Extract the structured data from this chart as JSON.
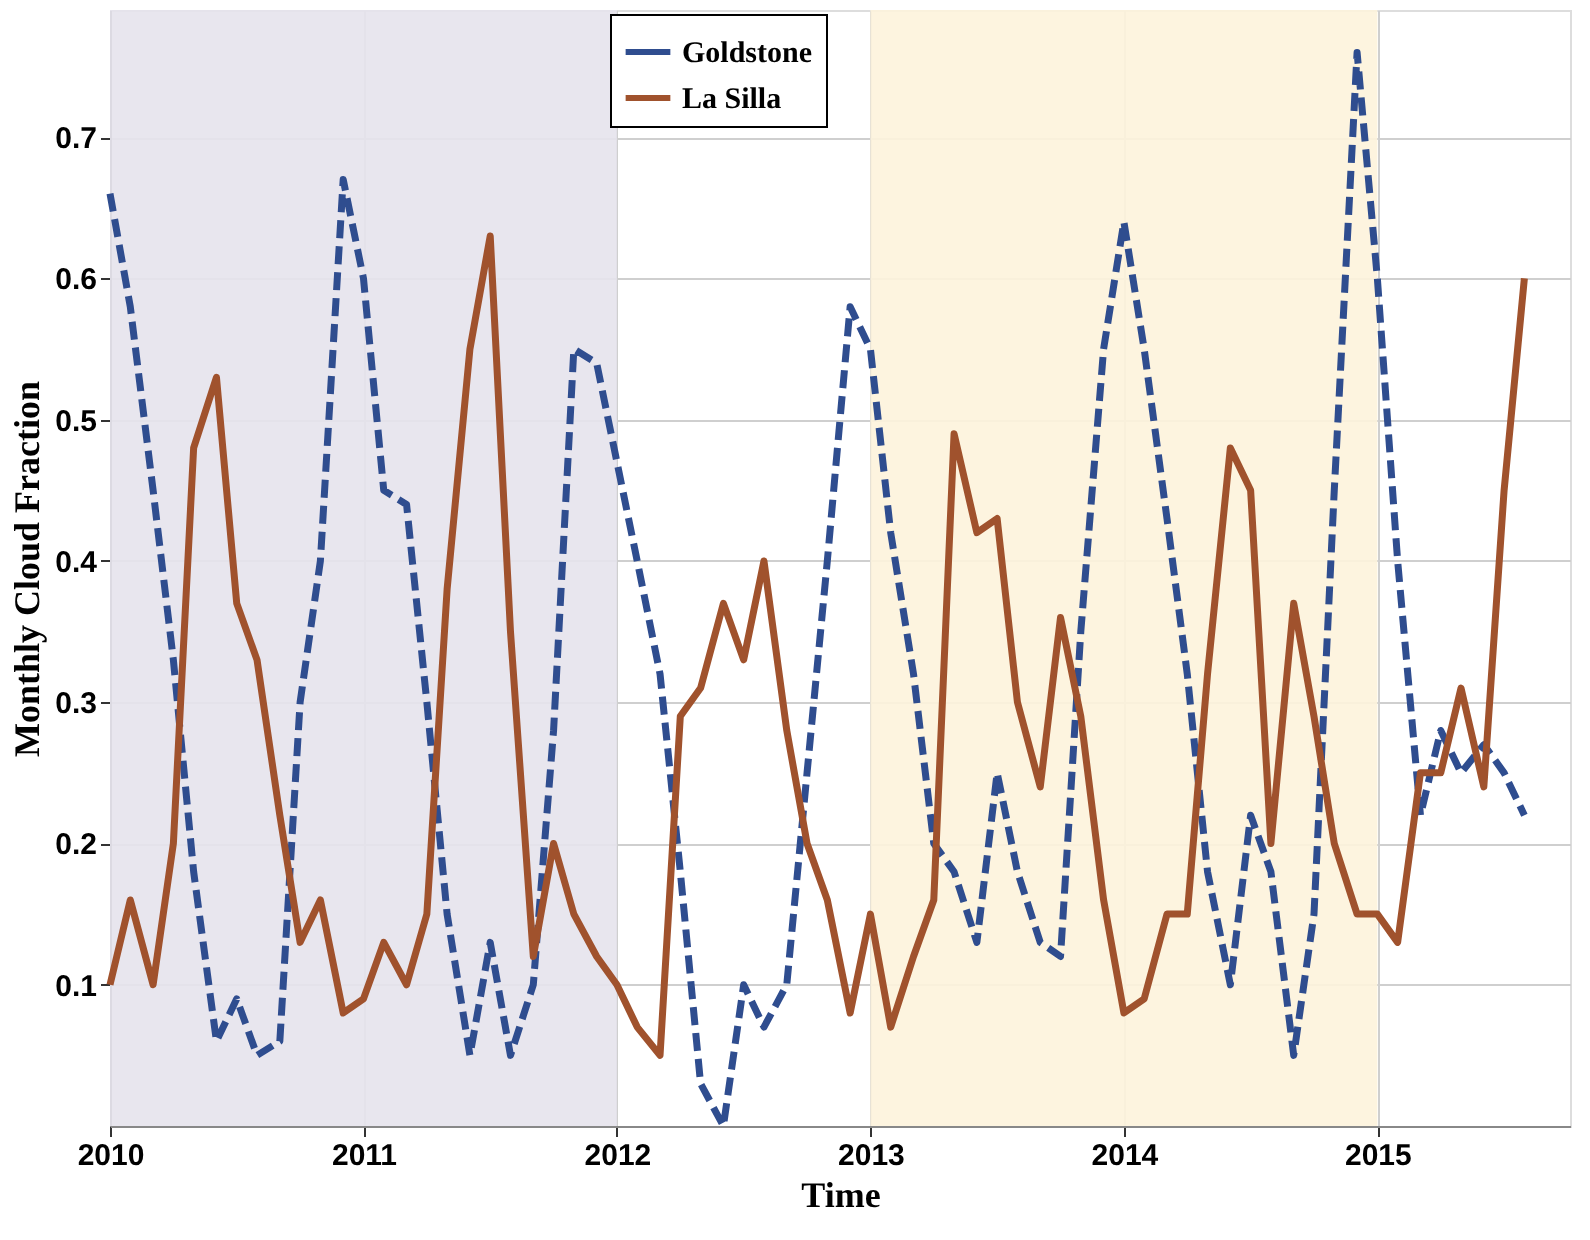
{
  "chart_data": {
    "type": "line",
    "xlabel": "Time",
    "ylabel": "Monthly Cloud Fraction",
    "xlim": [
      2010,
      2015.76
    ],
    "xticks": [
      2010,
      2011,
      2012,
      2013,
      2014,
      2015
    ],
    "ylim": [
      0,
      0.79
    ],
    "yticks": [
      0.1,
      0.2,
      0.3,
      0.4,
      0.5,
      0.6,
      0.7
    ],
    "grid": true,
    "legend": "top",
    "marker": "none",
    "bands": [
      {
        "axis": "x",
        "from": 2010,
        "to": 2012,
        "color": "#e6e3ec"
      },
      {
        "axis": "x",
        "from": 2013,
        "to": 2015,
        "color": "#fdf3dc"
      }
    ],
    "series": [
      {
        "name": "Goldstone",
        "color": "#2f4d8f",
        "line_style": "dashed",
        "x": [
          2010.0,
          2010.08,
          2010.17,
          2010.25,
          2010.33,
          2010.42,
          2010.5,
          2010.58,
          2010.67,
          2010.75,
          2010.83,
          2010.92,
          2011.0,
          2011.08,
          2011.17,
          2011.25,
          2011.33,
          2011.42,
          2011.5,
          2011.58,
          2011.67,
          2011.75,
          2011.83,
          2011.92,
          2012.0,
          2012.08,
          2012.17,
          2012.25,
          2012.33,
          2012.42,
          2012.5,
          2012.58,
          2012.67,
          2012.75,
          2012.83,
          2012.92,
          2013.0,
          2013.08,
          2013.17,
          2013.25,
          2013.33,
          2013.42,
          2013.5,
          2013.58,
          2013.67,
          2013.75,
          2013.83,
          2013.92,
          2014.0,
          2014.08,
          2014.17,
          2014.25,
          2014.33,
          2014.42,
          2014.5,
          2014.58,
          2014.67,
          2014.75,
          2014.83,
          2014.92,
          2015.0,
          2015.08,
          2015.17,
          2015.25,
          2015.33,
          2015.42,
          2015.5,
          2015.58
        ],
        "values": [
          0.66,
          0.58,
          0.45,
          0.33,
          0.18,
          0.06,
          0.09,
          0.05,
          0.06,
          0.3,
          0.4,
          0.67,
          0.6,
          0.45,
          0.44,
          0.3,
          0.15,
          0.05,
          0.13,
          0.05,
          0.1,
          0.28,
          0.55,
          0.54,
          0.47,
          0.4,
          0.32,
          0.18,
          0.03,
          0.0,
          0.1,
          0.07,
          0.1,
          0.25,
          0.4,
          0.58,
          0.55,
          0.42,
          0.32,
          0.2,
          0.18,
          0.13,
          0.25,
          0.18,
          0.13,
          0.12,
          0.35,
          0.55,
          0.64,
          0.55,
          0.43,
          0.32,
          0.18,
          0.1,
          0.22,
          0.18,
          0.05,
          0.15,
          0.45,
          0.76,
          0.6,
          0.4,
          0.22,
          0.28,
          0.25,
          0.27,
          0.25,
          0.22
        ]
      },
      {
        "name": "La Silla",
        "color": "#a0522d",
        "line_style": "solid",
        "x": [
          2010.0,
          2010.08,
          2010.17,
          2010.25,
          2010.33,
          2010.42,
          2010.5,
          2010.58,
          2010.67,
          2010.75,
          2010.83,
          2010.92,
          2011.0,
          2011.08,
          2011.17,
          2011.25,
          2011.33,
          2011.42,
          2011.5,
          2011.58,
          2011.67,
          2011.75,
          2011.83,
          2011.92,
          2012.0,
          2012.08,
          2012.17,
          2012.25,
          2012.33,
          2012.42,
          2012.5,
          2012.58,
          2012.67,
          2012.75,
          2012.83,
          2012.92,
          2013.0,
          2013.08,
          2013.17,
          2013.25,
          2013.33,
          2013.42,
          2013.5,
          2013.58,
          2013.67,
          2013.75,
          2013.83,
          2013.92,
          2014.0,
          2014.08,
          2014.17,
          2014.25,
          2014.33,
          2014.42,
          2014.5,
          2014.58,
          2014.67,
          2014.75,
          2014.83,
          2014.92,
          2015.0,
          2015.08,
          2015.17,
          2015.25,
          2015.33,
          2015.42,
          2015.5,
          2015.58
        ],
        "values": [
          0.1,
          0.16,
          0.1,
          0.2,
          0.48,
          0.53,
          0.37,
          0.33,
          0.22,
          0.13,
          0.16,
          0.08,
          0.09,
          0.13,
          0.1,
          0.15,
          0.38,
          0.55,
          0.63,
          0.35,
          0.12,
          0.2,
          0.15,
          0.12,
          0.1,
          0.07,
          0.05,
          0.29,
          0.31,
          0.37,
          0.33,
          0.4,
          0.28,
          0.2,
          0.16,
          0.08,
          0.15,
          0.07,
          0.12,
          0.16,
          0.49,
          0.42,
          0.43,
          0.3,
          0.24,
          0.36,
          0.29,
          0.16,
          0.08,
          0.09,
          0.15,
          0.15,
          0.32,
          0.48,
          0.45,
          0.2,
          0.37,
          0.29,
          0.2,
          0.15,
          0.15,
          0.13,
          0.25,
          0.25,
          0.31,
          0.24,
          0.45,
          0.6
        ]
      }
    ]
  }
}
